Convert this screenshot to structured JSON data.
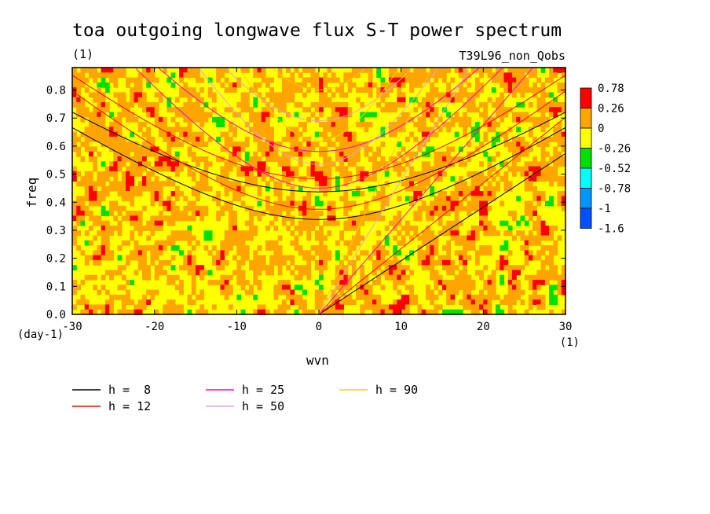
{
  "chart_data": {
    "type": "heatmap",
    "title": "toa outgoing longwave flux S-T power spectrum",
    "units": "(1)",
    "run_label": "T39L96_non_Qobs",
    "xlabel": "wvn",
    "ylabel": "freq",
    "x_units": "(1)",
    "y_units": "(day-1)",
    "xlim": [
      -30,
      30
    ],
    "ylim": [
      0,
      0.88
    ],
    "x_ticks": [
      "-30",
      "-20",
      "-10",
      "0",
      "10",
      "20",
      "30"
    ],
    "y_ticks": [
      "0.0",
      "0.1",
      "0.2",
      "0.3",
      "0.4",
      "0.5",
      "0.6",
      "0.7",
      "0.8"
    ],
    "colorbar": {
      "labels": [
        "0.78",
        "0.26",
        "0",
        "-0.26",
        "-0.52",
        "-0.78",
        "-1",
        "-1.6"
      ],
      "colors": [
        "#ff0000",
        "#ffa500",
        "#ffff00",
        "#00e000",
        "#00ffff",
        "#0096ff",
        "#0050ff"
      ]
    },
    "dispersion_curves": [
      {
        "name": "h =  8",
        "label": "h =  8",
        "color": "#000000",
        "equivalent_depth": 8
      },
      {
        "name": "h = 12",
        "label": "h = 12",
        "color": "#ff0000",
        "equivalent_depth": 12
      },
      {
        "name": "h = 25",
        "label": "h = 25",
        "color": "#ff00c0",
        "equivalent_depth": 25
      },
      {
        "name": "h = 50",
        "label": "h = 50",
        "color": "#e0a0e0",
        "equivalent_depth": 50
      },
      {
        "name": "h = 90",
        "label": "h = 90",
        "color": "#ffd000",
        "equivalent_depth": 90
      }
    ]
  }
}
